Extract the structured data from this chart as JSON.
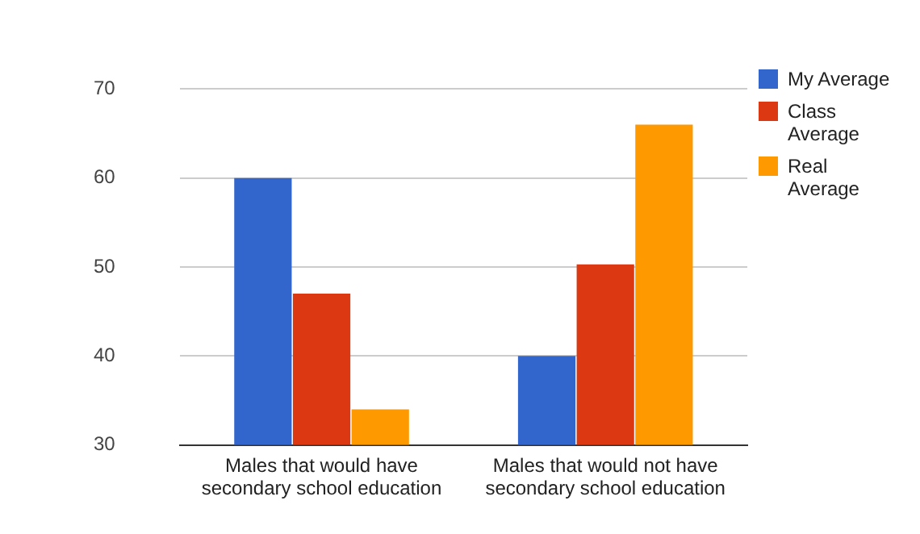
{
  "chart_data": {
    "type": "bar",
    "categories": [
      "Males that would have secondary school education",
      "Males that would not have secondary school education"
    ],
    "series": [
      {
        "name": "My Average",
        "color": "#3366cc",
        "values": [
          60,
          40
        ]
      },
      {
        "name": "Class Average",
        "color": "#dc3912",
        "values": [
          47,
          50.3
        ]
      },
      {
        "name": "Real Average",
        "color": "#ff9900",
        "values": [
          34,
          66
        ]
      }
    ],
    "ylim": [
      30,
      70
    ],
    "yticks": [
      30,
      40,
      50,
      60,
      70
    ],
    "grid": "y",
    "legend": "right"
  }
}
